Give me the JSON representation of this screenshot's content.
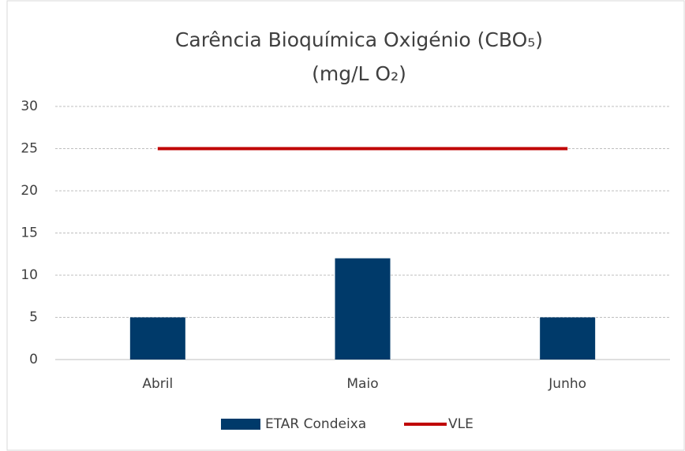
{
  "chart_data": {
    "type": "bar",
    "title_lines": [
      "Carência Bioquímica Oxigénio (CBO₅)",
      "(mg/L O₂)"
    ],
    "categories": [
      "Abril",
      "Maio",
      "Junho"
    ],
    "series": [
      {
        "name": "ETAR Condeixa",
        "type": "bar",
        "color": "#003a6a",
        "values": [
          5,
          12,
          5
        ]
      },
      {
        "name": "VLE",
        "type": "line",
        "color": "#c00000",
        "values": [
          25,
          25,
          25
        ]
      }
    ],
    "ylim": [
      0,
      30
    ],
    "yticks": [
      0,
      5,
      10,
      15,
      20,
      25,
      30
    ],
    "grid": true,
    "legend": "bottom"
  }
}
